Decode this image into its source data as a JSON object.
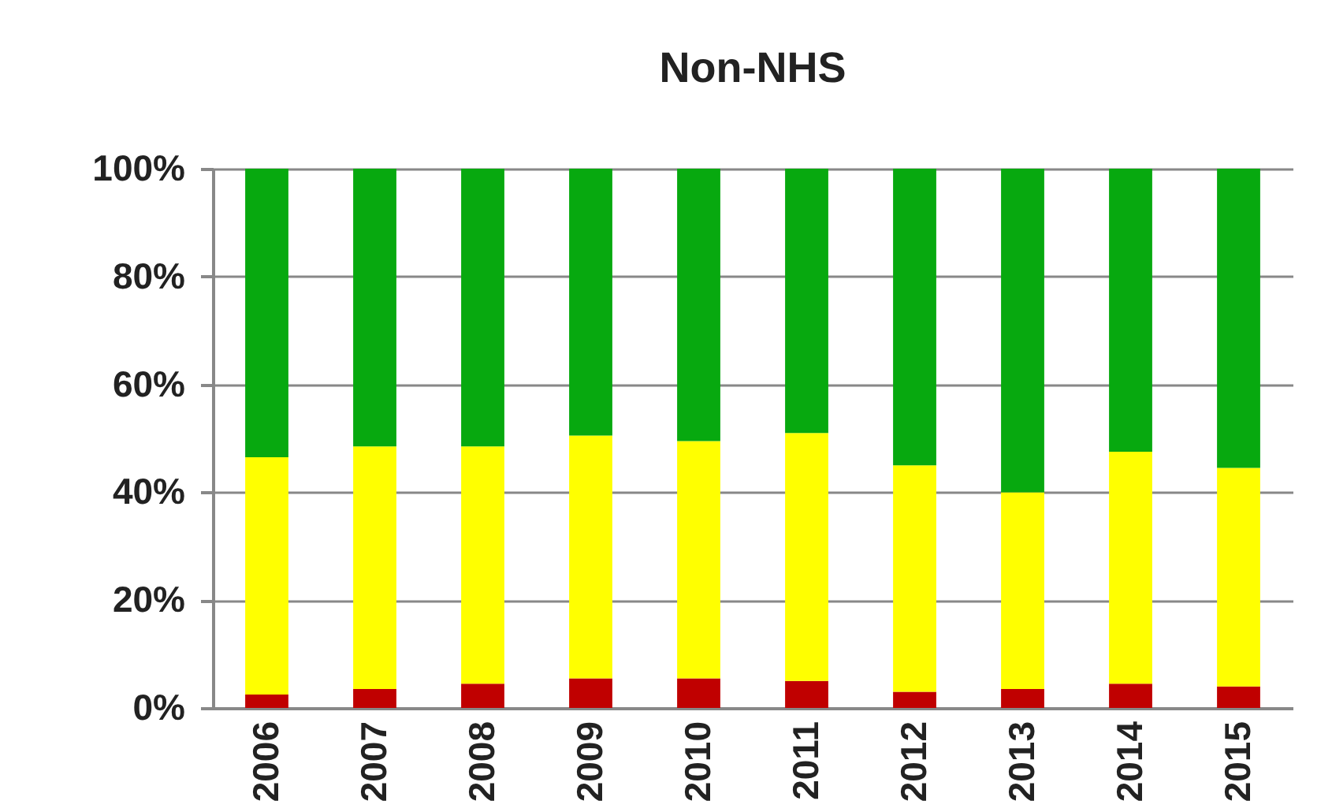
{
  "chart_data": {
    "type": "bar",
    "title": "Non-NHS",
    "stacked": true,
    "categories": [
      "2006",
      "2007",
      "2008",
      "2009",
      "2010",
      "2011",
      "2012",
      "2013",
      "2014",
      "2015"
    ],
    "series": [
      {
        "color": "#c00000",
        "values": [
          2.5,
          3.5,
          4.5,
          5.5,
          5.5,
          5,
          3,
          3.5,
          4.5,
          4
        ]
      },
      {
        "color": "#ffff00",
        "values": [
          44,
          45,
          44,
          45,
          44,
          46,
          42,
          36.5,
          43,
          40.5
        ]
      },
      {
        "color": "#07a90f",
        "values": [
          53.5,
          51.5,
          51.5,
          49.5,
          50.5,
          49,
          55,
          60,
          52.5,
          55.5
        ]
      }
    ],
    "ylim": [
      0,
      100
    ],
    "yticks": [
      {
        "value": 0,
        "label": "0%"
      },
      {
        "value": 20,
        "label": "20%"
      },
      {
        "value": 40,
        "label": "40%"
      },
      {
        "value": 60,
        "label": "60%"
      },
      {
        "value": 80,
        "label": "80%"
      },
      {
        "value": 100,
        "label": "100%"
      }
    ],
    "grid": "y"
  }
}
